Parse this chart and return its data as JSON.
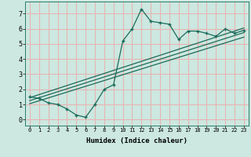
{
  "xlabel": "Humidex (Indice chaleur)",
  "bg_color": "#cce8e0",
  "grid_color": "#e8b4b4",
  "line_color": "#1a6b5a",
  "xlim": [
    -0.5,
    23.5
  ],
  "ylim": [
    -0.4,
    7.8
  ],
  "xticks": [
    0,
    1,
    2,
    3,
    4,
    5,
    6,
    7,
    8,
    9,
    10,
    11,
    12,
    13,
    14,
    15,
    16,
    17,
    18,
    19,
    20,
    21,
    22,
    23
  ],
  "yticks": [
    0,
    1,
    2,
    3,
    4,
    5,
    6,
    7
  ],
  "main_x": [
    0,
    1,
    2,
    3,
    4,
    5,
    6,
    7,
    8,
    9,
    10,
    11,
    12,
    13,
    14,
    15,
    16,
    17,
    18,
    19,
    20,
    21,
    22,
    23
  ],
  "main_y": [
    1.5,
    1.4,
    1.1,
    1.0,
    0.7,
    0.3,
    0.15,
    1.0,
    2.0,
    2.3,
    5.2,
    6.0,
    7.3,
    6.5,
    6.4,
    6.3,
    5.3,
    5.85,
    5.85,
    5.7,
    5.5,
    6.0,
    5.7,
    5.9
  ],
  "line1_x": [
    0,
    23
  ],
  "line1_y": [
    1.45,
    6.05
  ],
  "line2_x": [
    0,
    23
  ],
  "line2_y": [
    1.25,
    5.75
  ],
  "line3_x": [
    0,
    23
  ],
  "line3_y": [
    1.05,
    5.45
  ]
}
